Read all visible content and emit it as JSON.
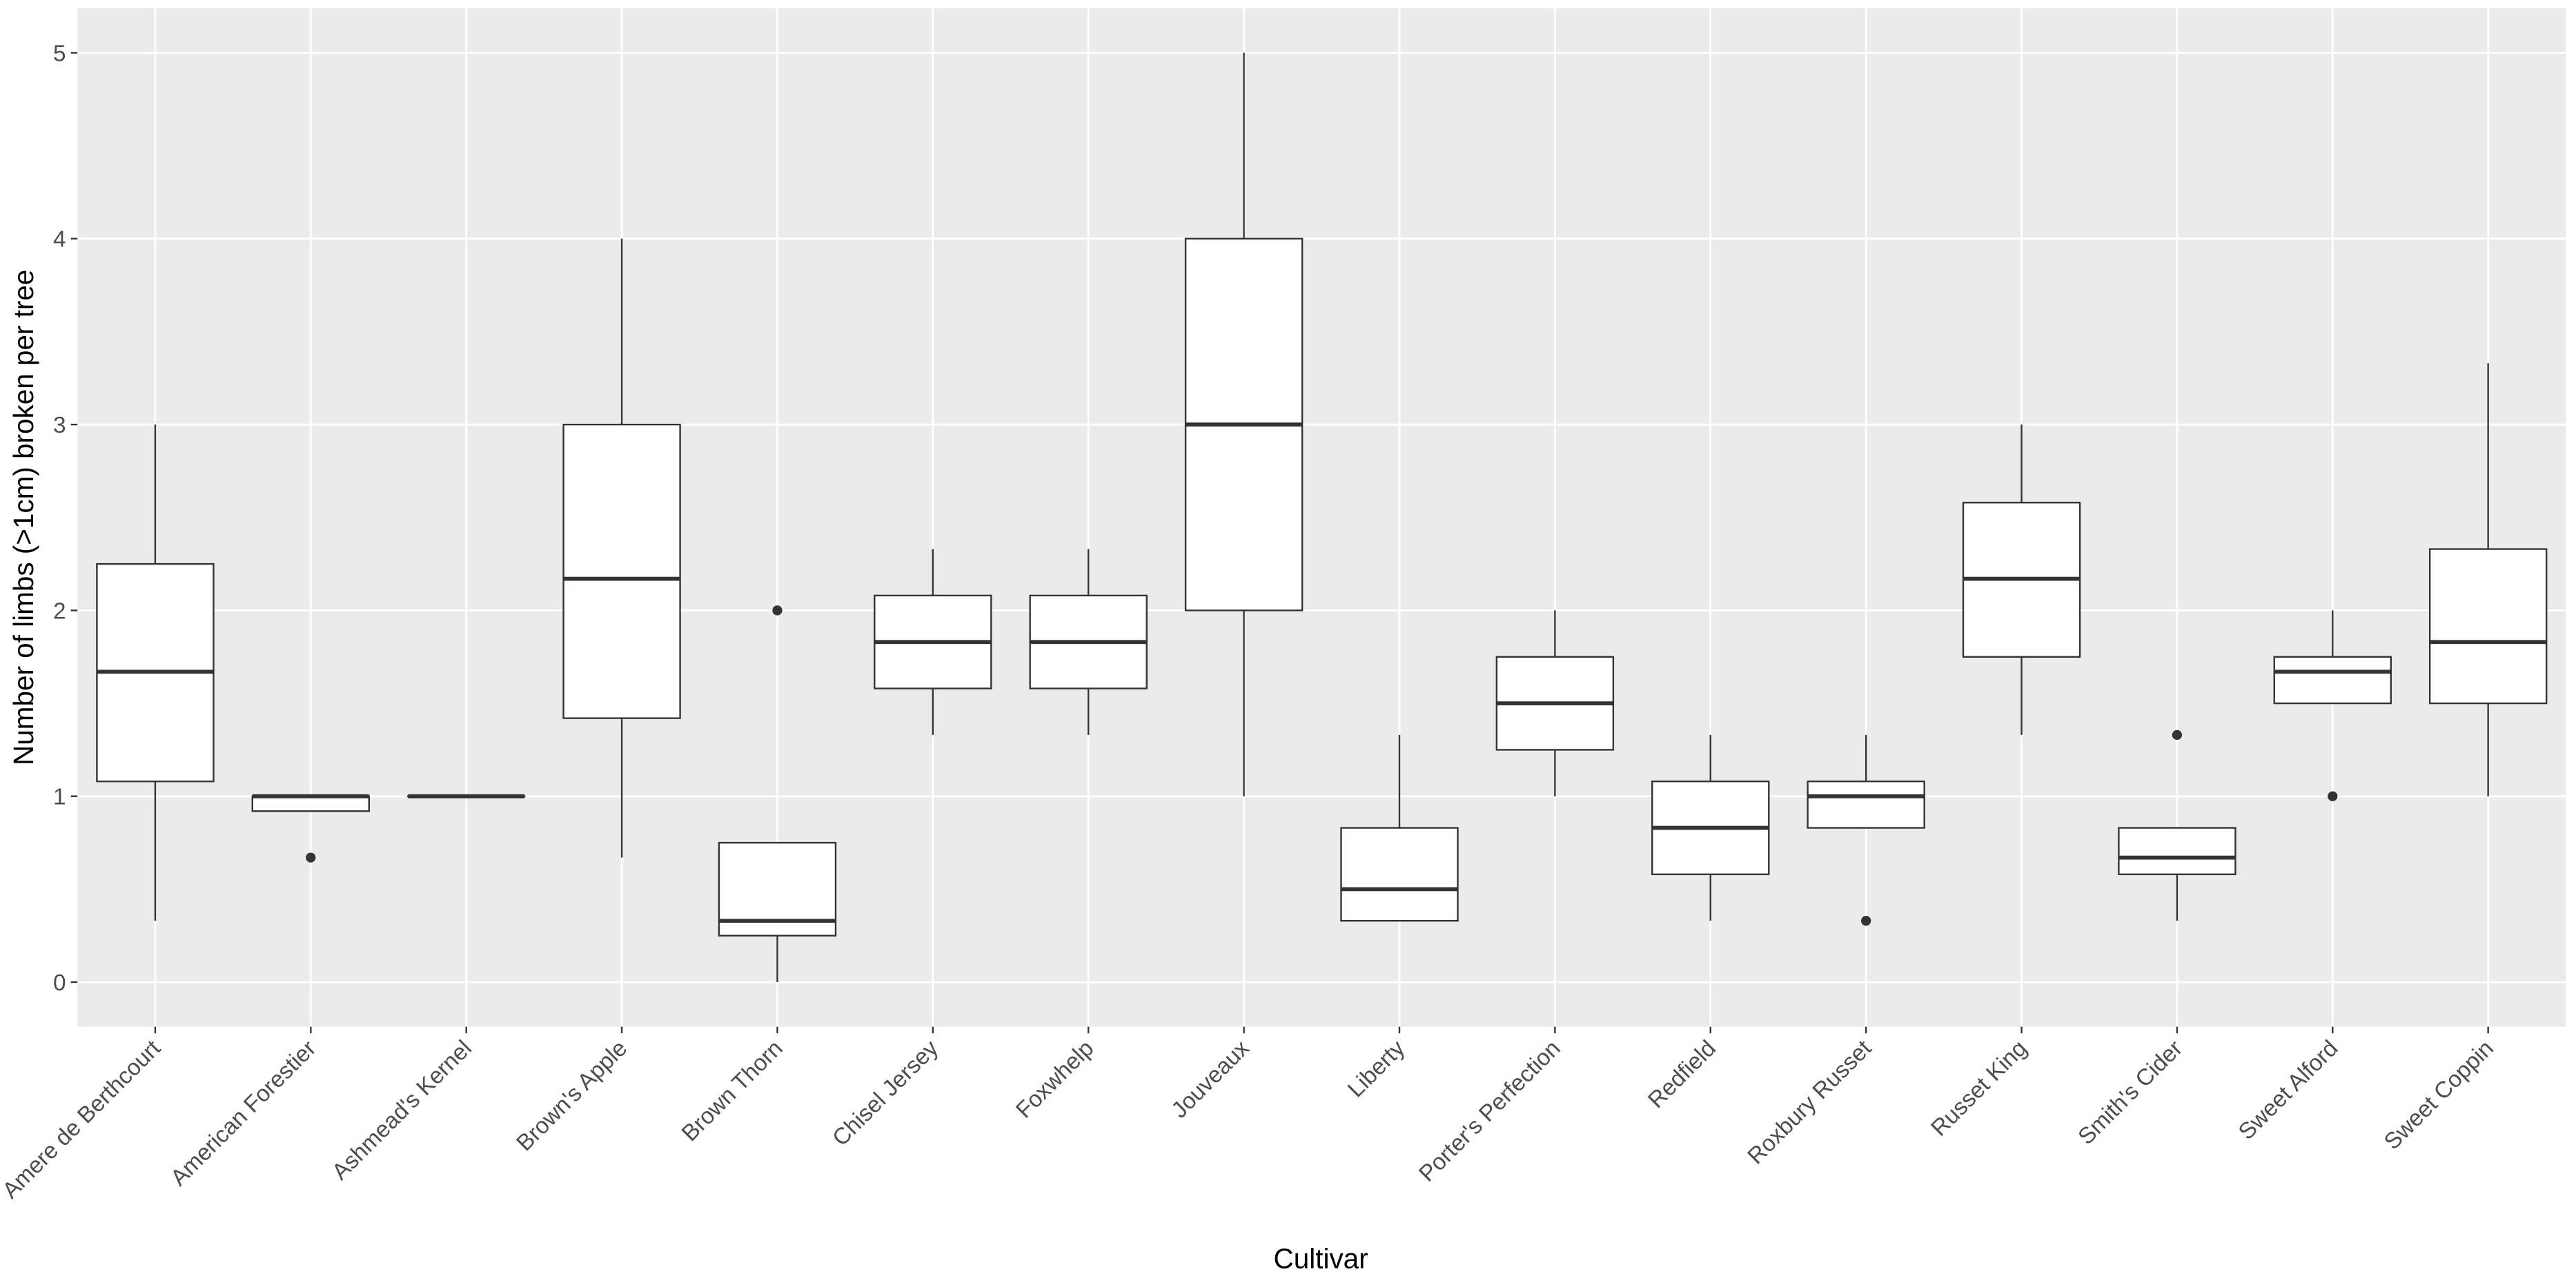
{
  "chart_data": {
    "type": "boxplot",
    "x_label": "Cultivar",
    "y_label": "Number of limbs (>1cm) broken per tree",
    "categories": [
      "Amere de Berthcourt",
      "American Forestier",
      "Ashmead's Kernel",
      "Brown's Apple",
      "Brown Thorn",
      "Chisel Jersey",
      "Foxwhelp",
      "Jouveaux",
      "Liberty",
      "Porter's Perfection",
      "Redfield",
      "Roxbury Russet",
      "Russet King",
      "Smith's Cider",
      "Sweet Alford",
      "Sweet Coppin"
    ],
    "min": [
      0.33,
      0.92,
      1,
      0.67,
      0,
      1.33,
      1.33,
      1,
      0.33,
      1,
      0.33,
      0.83,
      1.33,
      0.33,
      1.5,
      1
    ],
    "q1": [
      1.08,
      0.92,
      1,
      1.42,
      0.25,
      1.58,
      1.58,
      2,
      0.33,
      1.25,
      0.58,
      0.83,
      1.75,
      0.58,
      1.5,
      1.5
    ],
    "median": [
      1.67,
      1,
      1,
      2.17,
      0.33,
      1.83,
      1.83,
      3,
      0.5,
      1.5,
      0.83,
      1,
      2.17,
      0.67,
      1.67,
      1.83
    ],
    "q3": [
      2.25,
      1,
      1,
      3,
      0.75,
      2.08,
      2.08,
      4,
      0.83,
      1.75,
      1.08,
      1.08,
      2.58,
      0.83,
      1.75,
      2.33
    ],
    "max": [
      3,
      1,
      1,
      4,
      0.75,
      2.33,
      2.33,
      5,
      1.33,
      2,
      1.33,
      1.33,
      3,
      0.83,
      2,
      3.33
    ],
    "outliers": [
      [],
      [
        0.67
      ],
      [],
      [],
      [
        2
      ],
      [],
      [],
      [],
      [],
      [],
      [],
      [
        0.33
      ],
      [],
      [
        1.33
      ],
      [
        1
      ],
      []
    ],
    "box_color": "#ffffff",
    "line_color": "#333333",
    "background": "#ebebeb",
    "ylim": [
      -0.24,
      5.24
    ],
    "yticks": [
      0,
      1,
      2,
      3,
      4,
      5
    ],
    "grid": true
  }
}
